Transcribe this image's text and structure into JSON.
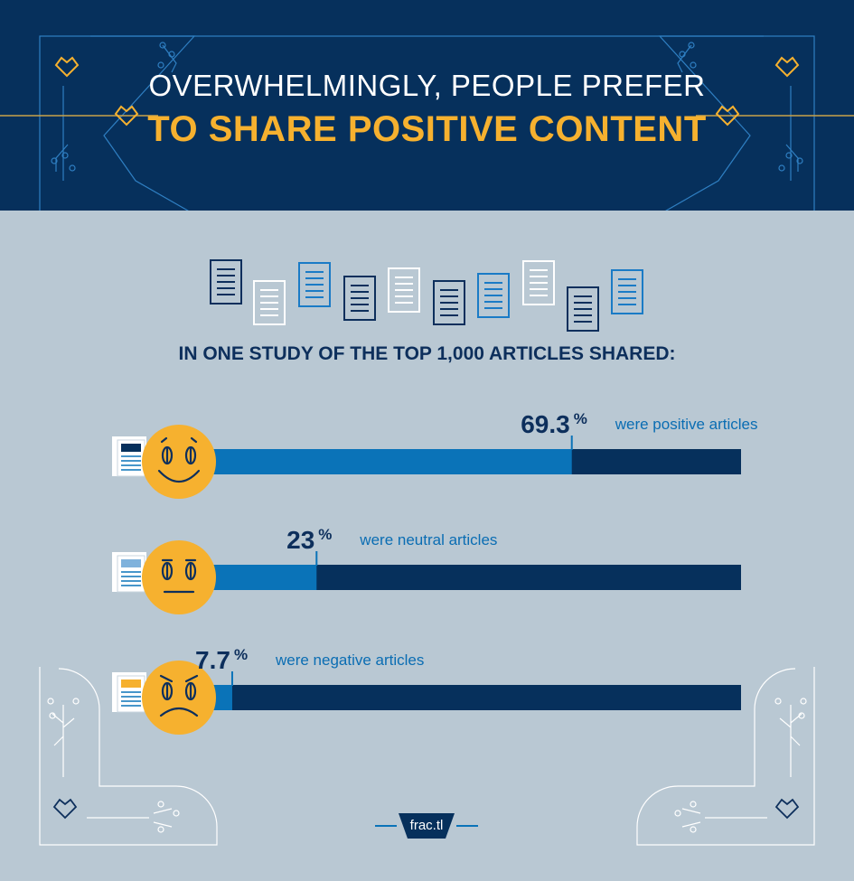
{
  "header": {
    "line1": "OVERWHELMINGLY, PEOPLE PREFER",
    "line2": "TO SHARE POSITIVE CONTENT"
  },
  "subtitle": "IN ONE STUDY OF THE TOP 1,000 ARTICLES SHARED:",
  "footer": {
    "brand": "frac.tl"
  },
  "colors": {
    "header_bg": "#06305c",
    "page_bg": "#b9c8d3",
    "accent_yellow": "#f6b12f",
    "bar_fill": "#0a73b8",
    "bar_track": "#06305c",
    "text_navy": "#0d2f5c",
    "label_blue": "#0a6db3"
  },
  "chart_data": {
    "type": "bar",
    "orientation": "horizontal",
    "unit": "%",
    "xlim": [
      0,
      100
    ],
    "categories": [
      "were positive articles",
      "were neutral articles",
      "were negative articles"
    ],
    "values": [
      69.3,
      23,
      7.7
    ],
    "value_labels": [
      "69.3",
      "23",
      "7.7"
    ],
    "icons": [
      "smiling-face-icon",
      "neutral-face-icon",
      "frowning-face-icon"
    ]
  }
}
